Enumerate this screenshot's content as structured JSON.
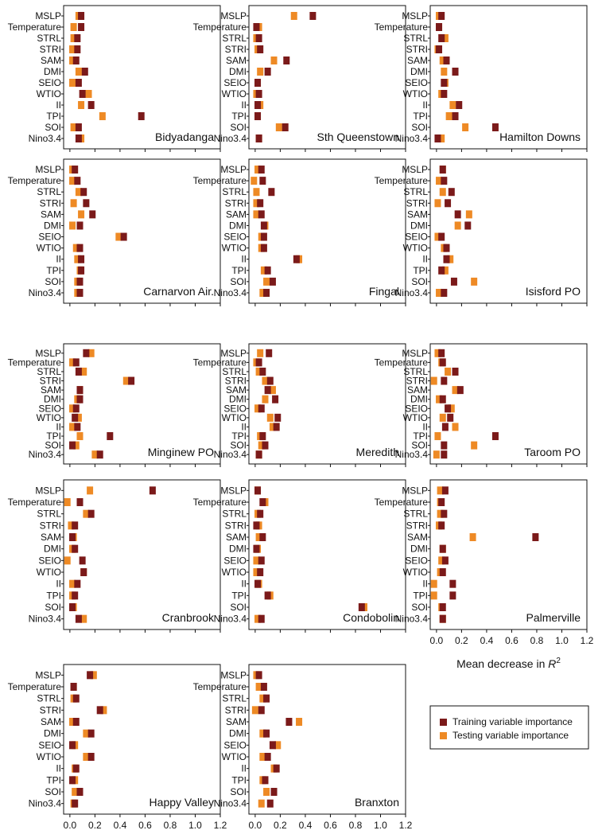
{
  "figure": {
    "variables": [
      "MSLP",
      "Temperature",
      "STRL",
      "STRI",
      "SAM",
      "DMI",
      "SEIO",
      "WTIO",
      "II",
      "TPI",
      "SOI",
      "Nino3.4"
    ],
    "x_ticks": [
      "0.0",
      "0.2",
      "0.4",
      "0.6",
      "0.8",
      "1.0",
      "1.2"
    ],
    "x_label": "Mean decrease in ",
    "x_label_var": "R",
    "x_label_sup": "2",
    "legend": {
      "training": "Training variable importance",
      "testing": "Testing variable importance"
    },
    "colors": {
      "training": "#7b1a1a",
      "testing": "#ee8a25"
    }
  },
  "chart_data": [
    {
      "type": "bar",
      "title": "Bidyadanga",
      "xlim": [
        0,
        1.2
      ],
      "series": [
        {
          "name": "Training variable importance",
          "values": [
            0.09,
            0.09,
            0.06,
            0.06,
            0.05,
            0.12,
            0.07,
            0.1,
            0.17,
            0.57,
            0.07,
            0.07
          ]
        },
        {
          "name": "Testing variable importance",
          "values": [
            0.07,
            0.03,
            0.03,
            0.02,
            0.02,
            0.07,
            0.02,
            0.15,
            0.09,
            0.26,
            0.03,
            0.09
          ]
        }
      ]
    },
    {
      "type": "bar",
      "title": "Sth Queenstown",
      "xlim": [
        0,
        1.2
      ],
      "series": [
        {
          "name": "Training variable importance",
          "values": [
            0.46,
            0.01,
            0.03,
            0.04,
            0.25,
            0.1,
            0.02,
            0.03,
            0.02,
            0.02,
            0.24,
            0.03
          ]
        },
        {
          "name": "Testing variable importance",
          "values": [
            0.31,
            0.03,
            0.01,
            0.02,
            0.15,
            0.04,
            0.02,
            0.01,
            0.04,
            0.02,
            0.19,
            0.03
          ]
        }
      ]
    },
    {
      "type": "bar",
      "title": "Hamilton Downs",
      "xlim": [
        0,
        1.2
      ],
      "series": [
        {
          "name": "Training variable importance",
          "values": [
            0.04,
            0.02,
            0.04,
            0.02,
            0.08,
            0.15,
            0.06,
            0.06,
            0.18,
            0.15,
            0.47,
            0.01
          ]
        },
        {
          "name": "Testing variable importance",
          "values": [
            0.02,
            0.02,
            0.07,
            0.01,
            0.05,
            0.06,
            0.07,
            0.04,
            0.13,
            0.1,
            0.23,
            0.04
          ]
        }
      ]
    },
    {
      "type": "bar",
      "title": "Carnarvon Air.",
      "xlim": [
        0,
        1.2
      ],
      "series": [
        {
          "name": "Training variable importance",
          "values": [
            0.04,
            0.06,
            0.11,
            0.13,
            0.18,
            0.08,
            0.43,
            0.08,
            0.09,
            0.09,
            0.08,
            0.08
          ]
        },
        {
          "name": "Testing variable importance",
          "values": [
            0.02,
            0.02,
            0.07,
            0.03,
            0.09,
            0.02,
            0.39,
            0.05,
            0.06,
            0.08,
            0.06,
            0.06
          ]
        }
      ]
    },
    {
      "type": "bar",
      "title": "Fingal",
      "xlim": [
        0,
        1.2
      ],
      "series": [
        {
          "name": "Training variable importance",
          "values": [
            0.05,
            0.06,
            0.13,
            0.04,
            0.05,
            0.07,
            0.07,
            0.07,
            0.33,
            0.1,
            0.14,
            0.09
          ]
        },
        {
          "name": "Testing variable importance",
          "values": [
            0.02,
            -0.01,
            0.01,
            0.01,
            0.01,
            0.08,
            0.05,
            0.05,
            0.35,
            0.07,
            0.09,
            0.06
          ]
        }
      ]
    },
    {
      "type": "bar",
      "title": "Isisford PO",
      "xlim": [
        0,
        1.2
      ],
      "series": [
        {
          "name": "Training variable importance",
          "values": [
            0.05,
            0.06,
            0.12,
            0.09,
            0.17,
            0.25,
            0.04,
            0.08,
            0.08,
            0.04,
            0.14,
            0.06
          ]
        },
        {
          "name": "Testing variable importance",
          "values": [
            0.05,
            0.02,
            0.05,
            0.01,
            0.26,
            0.17,
            0.01,
            0.06,
            0.11,
            0.07,
            0.3,
            0.02
          ]
        }
      ]
    },
    {
      "type": "bar",
      "title": "Minginew PO",
      "xlim": [
        0,
        1.2
      ],
      "series": [
        {
          "name": "Training variable importance",
          "values": [
            0.13,
            0.05,
            0.07,
            0.49,
            0.08,
            0.08,
            0.05,
            0.04,
            0.06,
            0.32,
            0.02,
            0.24
          ]
        },
        {
          "name": "Testing variable importance",
          "values": [
            0.17,
            0.02,
            0.11,
            0.45,
            0.08,
            0.06,
            0.02,
            0.07,
            0.02,
            0.08,
            0.05,
            0.2
          ]
        }
      ]
    },
    {
      "type": "bar",
      "title": "Meredith",
      "xlim": [
        0,
        1.2
      ],
      "series": [
        {
          "name": "Training variable importance",
          "values": [
            0.11,
            0.03,
            0.06,
            0.12,
            0.1,
            0.16,
            0.05,
            0.18,
            0.17,
            0.06,
            0.08,
            0.03
          ]
        },
        {
          "name": "Testing variable importance",
          "values": [
            0.04,
            0.01,
            0.03,
            0.08,
            0.14,
            0.08,
            0.02,
            0.12,
            0.14,
            0.04,
            0.05,
            0.03
          ]
        }
      ]
    },
    {
      "type": "bar",
      "title": "Taroom PO",
      "xlim": [
        0,
        1.2
      ],
      "series": [
        {
          "name": "Training variable importance",
          "values": [
            0.04,
            0.05,
            0.15,
            0.06,
            0.19,
            0.05,
            0.09,
            0.11,
            0.07,
            0.47,
            0.06,
            0.06
          ]
        },
        {
          "name": "Testing variable importance",
          "values": [
            0.01,
            0.04,
            0.09,
            -0.02,
            0.15,
            0.02,
            0.12,
            0.05,
            0.15,
            0.01,
            0.3,
            0.0
          ]
        }
      ]
    },
    {
      "type": "bar",
      "title": "Cranbrook",
      "xlim": [
        0,
        1.2
      ],
      "series": [
        {
          "name": "Training variable importance",
          "values": [
            0.66,
            0.08,
            0.17,
            0.04,
            0.02,
            0.04,
            0.1,
            0.11,
            0.06,
            0.04,
            0.02,
            0.07
          ]
        },
        {
          "name": "Testing variable importance",
          "values": [
            0.16,
            -0.02,
            0.13,
            0.01,
            0.03,
            0.02,
            -0.02,
            0.11,
            0.02,
            0.02,
            0.03,
            0.11
          ]
        }
      ]
    },
    {
      "type": "bar",
      "title": "Condobolin",
      "xlim": [
        0,
        1.2
      ],
      "series": [
        {
          "name": "Training variable importance",
          "values": [
            0.02,
            0.06,
            0.04,
            0.01,
            0.06,
            0.01,
            0.05,
            0.04,
            0.02,
            0.1,
            0.85,
            0.05
          ]
        },
        {
          "name": "Testing variable importance",
          "values": [
            0.02,
            0.08,
            0.02,
            0.03,
            0.03,
            0.02,
            0.01,
            0.01,
            0.03,
            0.12,
            0.87,
            0.02
          ]
        }
      ]
    },
    {
      "type": "bar",
      "title": "Palmerville",
      "xlim": [
        0,
        1.2
      ],
      "series": [
        {
          "name": "Training variable importance",
          "values": [
            0.07,
            0.04,
            0.06,
            0.04,
            0.79,
            0.05,
            0.07,
            0.05,
            0.13,
            0.13,
            0.05,
            0.05
          ]
        },
        {
          "name": "Testing variable importance",
          "values": [
            0.03,
            0.03,
            0.03,
            0.02,
            0.29,
            0.05,
            0.04,
            0.03,
            -0.02,
            -0.02,
            0.04,
            0.05
          ]
        }
      ]
    },
    {
      "type": "bar",
      "title": "Happy Valley",
      "xlim": [
        0,
        1.2
      ],
      "series": [
        {
          "name": "Training variable importance",
          "values": [
            0.16,
            0.03,
            0.05,
            0.24,
            0.05,
            0.17,
            0.02,
            0.17,
            0.05,
            0.02,
            0.08,
            0.04
          ]
        },
        {
          "name": "Testing variable importance",
          "values": [
            0.19,
            0.03,
            0.03,
            0.27,
            0.02,
            0.13,
            0.04,
            0.13,
            0.04,
            0.04,
            0.04,
            0.03
          ]
        }
      ]
    },
    {
      "type": "bar",
      "title": "Branxton",
      "xlim": [
        0,
        1.2
      ],
      "series": [
        {
          "name": "Training variable importance",
          "values": [
            0.03,
            0.07,
            0.09,
            0.05,
            0.27,
            0.09,
            0.14,
            0.1,
            0.17,
            0.08,
            0.15,
            0.12
          ]
        },
        {
          "name": "Testing variable importance",
          "values": [
            0.01,
            0.03,
            0.06,
            0.0,
            0.35,
            0.06,
            0.18,
            0.06,
            0.15,
            0.06,
            0.09,
            0.05
          ]
        }
      ]
    }
  ]
}
